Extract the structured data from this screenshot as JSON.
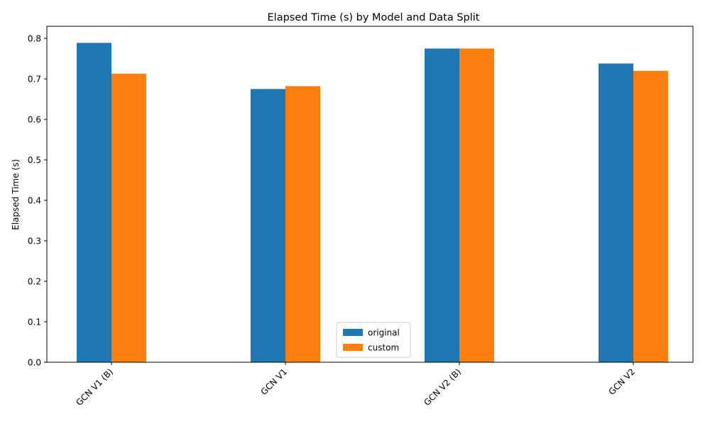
{
  "chart_data": {
    "type": "bar",
    "title": "Elapsed Time (s) by Model and Data Split",
    "xlabel": "",
    "ylabel": "Elapsed Time (s)",
    "categories": [
      "GCN V1 (B)",
      "GCN V1",
      "GCN V2 (B)",
      "GCN V2"
    ],
    "series": [
      {
        "name": "original",
        "color": "#1f77b4",
        "values": [
          0.789,
          0.675,
          0.775,
          0.738
        ]
      },
      {
        "name": "custom",
        "color": "#ff7f0e",
        "values": [
          0.713,
          0.682,
          0.775,
          0.72
        ]
      }
    ],
    "ylim": [
      0,
      0.83
    ],
    "yticks": [
      "0.0",
      "0.1",
      "0.2",
      "0.3",
      "0.4",
      "0.5",
      "0.6",
      "0.7",
      "0.8"
    ],
    "grid": false,
    "legend_position": "bottom-center"
  }
}
